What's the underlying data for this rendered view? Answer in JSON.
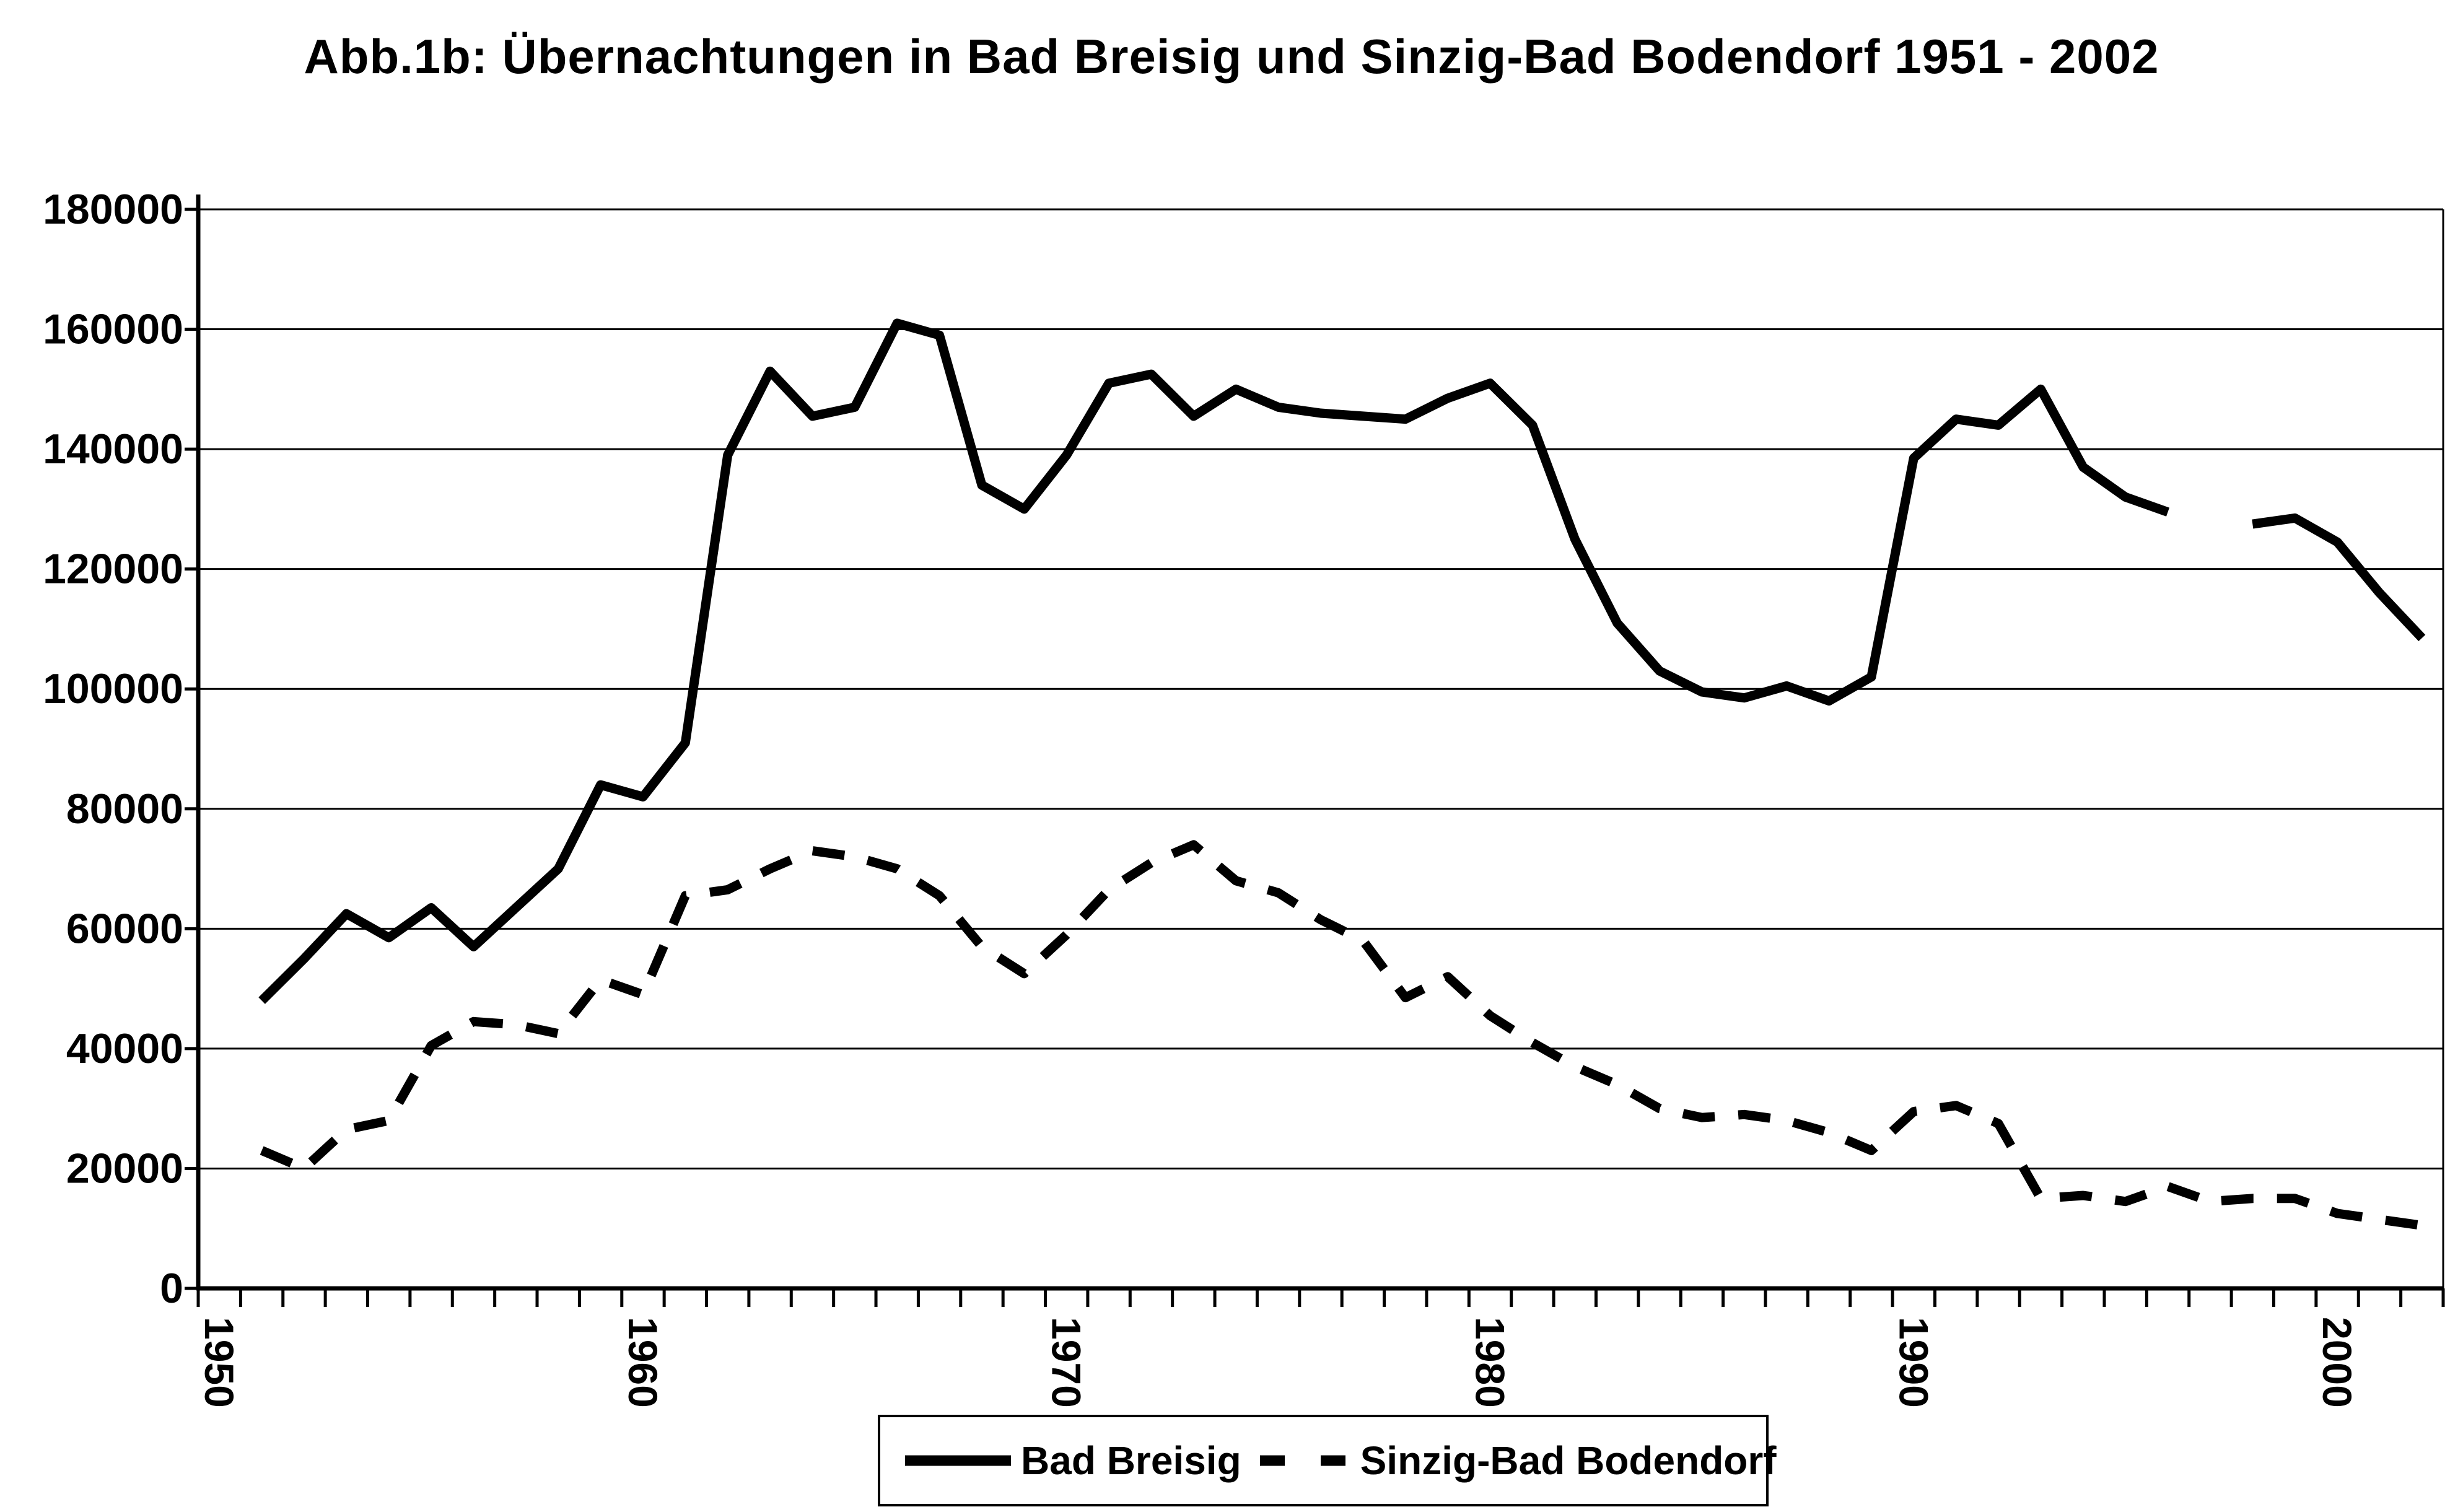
{
  "title": "Abb.1b: Übernachtungen in Bad Breisig und Sinzig-Bad Bodendorf 1951 - 2002",
  "chart_data": {
    "type": "line",
    "title": "Abb.1b: Übernachtungen in Bad Breisig und Sinzig-Bad Bodendorf 1951 - 2002",
    "x": [
      1951,
      1952,
      1953,
      1954,
      1955,
      1956,
      1957,
      1958,
      1959,
      1960,
      1961,
      1962,
      1963,
      1964,
      1965,
      1966,
      1967,
      1968,
      1969,
      1970,
      1971,
      1972,
      1973,
      1974,
      1975,
      1976,
      1977,
      1978,
      1979,
      1980,
      1981,
      1982,
      1983,
      1984,
      1985,
      1986,
      1987,
      1988,
      1989,
      1990,
      1991,
      1992,
      1993,
      1994,
      1995,
      1996,
      1997,
      1998,
      1999,
      2000,
      2001,
      2002
    ],
    "series": [
      {
        "name": "Bad Breisig",
        "line_style": "solid",
        "values": [
          48000,
          55000,
          62500,
          58500,
          63500,
          57000,
          63500,
          70000,
          84000,
          82000,
          91000,
          139000,
          153000,
          145500,
          147000,
          161000,
          159000,
          134000,
          130000,
          139000,
          151000,
          152500,
          145500,
          150000,
          147000,
          146000,
          145500,
          145000,
          148500,
          151000,
          144000,
          125000,
          111000,
          103000,
          99500,
          98500,
          100500,
          98000,
          102000,
          138500,
          145000,
          144000,
          150000,
          137000,
          132000,
          129500,
          null,
          127500,
          128500,
          124500,
          116000,
          108500
        ]
      },
      {
        "name": "Sinzig-Bad Bodendorf",
        "line_style": "dashed",
        "values": [
          23000,
          20000,
          26500,
          28000,
          40500,
          44500,
          44000,
          42500,
          51500,
          49000,
          65500,
          66500,
          70000,
          73000,
          72000,
          70000,
          65500,
          57000,
          52500,
          59000,
          66500,
          71000,
          74000,
          68000,
          66000,
          61500,
          58000,
          48500,
          52000,
          45500,
          41000,
          37000,
          34000,
          30000,
          28500,
          29000,
          28000,
          26000,
          23000,
          29500,
          30500,
          27500,
          15000,
          15500,
          14500,
          17000,
          14500,
          15000,
          15000,
          12500,
          11500,
          10500
        ]
      }
    ],
    "ylim": [
      0,
      180000
    ],
    "yticks": [
      0,
      20000,
      40000,
      60000,
      80000,
      100000,
      120000,
      140000,
      160000,
      180000
    ],
    "ytick_labels": [
      "0",
      "20000",
      "40000",
      "60000",
      "80000",
      "100000",
      "120000",
      "140000",
      "160000",
      "180000"
    ],
    "xtick_labels": [
      "1950",
      "1960",
      "1970",
      "1980",
      "1990",
      "2000"
    ],
    "x_axis_first_year": 1950,
    "x_axis_last_year": 2003,
    "grid": "horizontal",
    "legend_position": "bottom-center",
    "colors": {
      "foreground": "#000000",
      "background": "#ffffff"
    }
  }
}
